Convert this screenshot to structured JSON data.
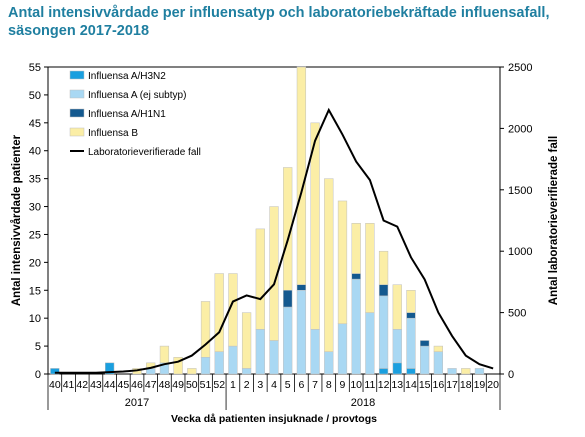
{
  "chart_data": {
    "type": "bar",
    "title": [
      "Antal intensivvårdade per influensatyp och laboratoriebekräftade influensafall,",
      "säsongen 2017-2018"
    ],
    "xlabel": "Vecka då patienten insjuknade / provtogs",
    "ylabel_left": "Antal intensivvårdade patienter",
    "ylabel_right": "Antal laboratorieverifierade fall",
    "ylim_left": [
      0,
      55
    ],
    "yticks_left": [
      0,
      5,
      10,
      15,
      20,
      25,
      30,
      35,
      40,
      45,
      50,
      55
    ],
    "ylim_right": [
      0,
      2500
    ],
    "yticks_right": [
      0,
      500,
      1000,
      1500,
      2000,
      2500
    ],
    "categories": [
      "40",
      "41",
      "42",
      "43",
      "44",
      "45",
      "46",
      "47",
      "48",
      "49",
      "50",
      "51",
      "52",
      "1",
      "2",
      "3",
      "4",
      "5",
      "6",
      "7",
      "8",
      "9",
      "10",
      "11",
      "12",
      "13",
      "14",
      "15",
      "16",
      "17",
      "18",
      "19",
      "20"
    ],
    "years": [
      {
        "label": "2017",
        "first_category": "40",
        "last_category": "52"
      },
      {
        "label": "2018",
        "first_category": "1",
        "last_category": "20"
      }
    ],
    "stacked": true,
    "legend_position": "top-left",
    "series": [
      {
        "name": "Influensa A/H3N2",
        "color": "#1a9fdf",
        "axis": "left",
        "values": [
          1,
          0,
          0,
          0,
          2,
          0,
          0,
          0,
          0,
          0,
          0,
          0,
          0,
          0,
          0,
          0,
          0,
          0,
          0,
          0,
          0,
          0,
          0,
          0,
          1,
          2,
          1,
          0,
          0,
          0,
          0,
          0,
          0
        ]
      },
      {
        "name": "Influensa A (ej subtyp)",
        "color": "#a9d8f3",
        "axis": "left",
        "values": [
          0,
          0,
          0,
          0,
          0,
          0,
          0,
          1,
          2,
          0,
          0,
          3,
          4,
          5,
          1,
          8,
          6,
          12,
          15,
          8,
          4,
          9,
          17,
          11,
          13,
          6,
          9,
          5,
          4,
          1,
          0,
          1,
          0
        ]
      },
      {
        "name": "Influensa A/H1N1",
        "color": "#14598f",
        "axis": "left",
        "values": [
          0,
          0,
          0,
          0,
          0,
          0,
          0,
          0,
          0,
          0,
          0,
          0,
          0,
          0,
          0,
          0,
          0,
          3,
          1,
          0,
          0,
          0,
          1,
          0,
          2,
          0,
          1,
          1,
          0,
          0,
          0,
          0,
          0
        ]
      },
      {
        "name": "Influensa B",
        "color": "#fbeea6",
        "axis": "left",
        "values": [
          0,
          0,
          0,
          0,
          0,
          0,
          1,
          1,
          3,
          3,
          1,
          10,
          14,
          13,
          10,
          18,
          24,
          22,
          39,
          37,
          31,
          22,
          9,
          16,
          6,
          8,
          4,
          0,
          1,
          0,
          1,
          0,
          0
        ]
      },
      {
        "name": "Laboratorieverifierade fall",
        "type": "line",
        "color": "#000000",
        "axis": "right",
        "values": [
          10,
          10,
          10,
          10,
          15,
          20,
          30,
          50,
          80,
          100,
          150,
          240,
          340,
          590,
          640,
          610,
          730,
          1090,
          1480,
          1900,
          2150,
          1950,
          1730,
          1580,
          1250,
          1200,
          950,
          770,
          500,
          310,
          150,
          80,
          45
        ]
      }
    ]
  }
}
